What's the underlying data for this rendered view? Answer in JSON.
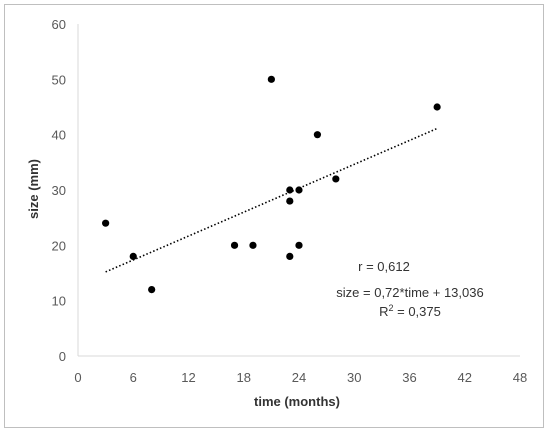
{
  "chart_data": {
    "type": "scatter",
    "xlabel": "time (months)",
    "ylabel": "size (mm)",
    "xlim": [
      0,
      48
    ],
    "ylim": [
      0,
      60
    ],
    "x_ticks": [
      0,
      6,
      12,
      18,
      24,
      30,
      36,
      42,
      48
    ],
    "y_ticks": [
      0,
      10,
      20,
      30,
      40,
      50,
      60
    ],
    "x_tick_labels": [
      "0",
      "6",
      "12",
      "18",
      "24",
      "30",
      "36",
      "42",
      "48"
    ],
    "y_tick_labels": [
      "0",
      "10",
      "20",
      "30",
      "40",
      "50",
      "60"
    ],
    "grid": false,
    "legend": false,
    "marker_color": "#000000",
    "points": [
      {
        "x": 3,
        "y": 24
      },
      {
        "x": 6,
        "y": 18
      },
      {
        "x": 8,
        "y": 12
      },
      {
        "x": 17,
        "y": 20
      },
      {
        "x": 19,
        "y": 20
      },
      {
        "x": 21,
        "y": 50
      },
      {
        "x": 23,
        "y": 30
      },
      {
        "x": 23,
        "y": 28
      },
      {
        "x": 23,
        "y": 18
      },
      {
        "x": 24,
        "y": 30
      },
      {
        "x": 24,
        "y": 20
      },
      {
        "x": 26,
        "y": 40
      },
      {
        "x": 28,
        "y": 32
      },
      {
        "x": 39,
        "y": 45
      }
    ],
    "trendline": {
      "style": "dotted",
      "x_start": 3,
      "x_end": 39,
      "slope": 0.72,
      "intercept": 13.036
    },
    "annotations": {
      "r": "r = 0,612",
      "equation": "size = 0,72*time + 13,036",
      "r2_prefix": "R",
      "r2_superscript": "2",
      "r2_suffix": " = 0,375"
    }
  }
}
